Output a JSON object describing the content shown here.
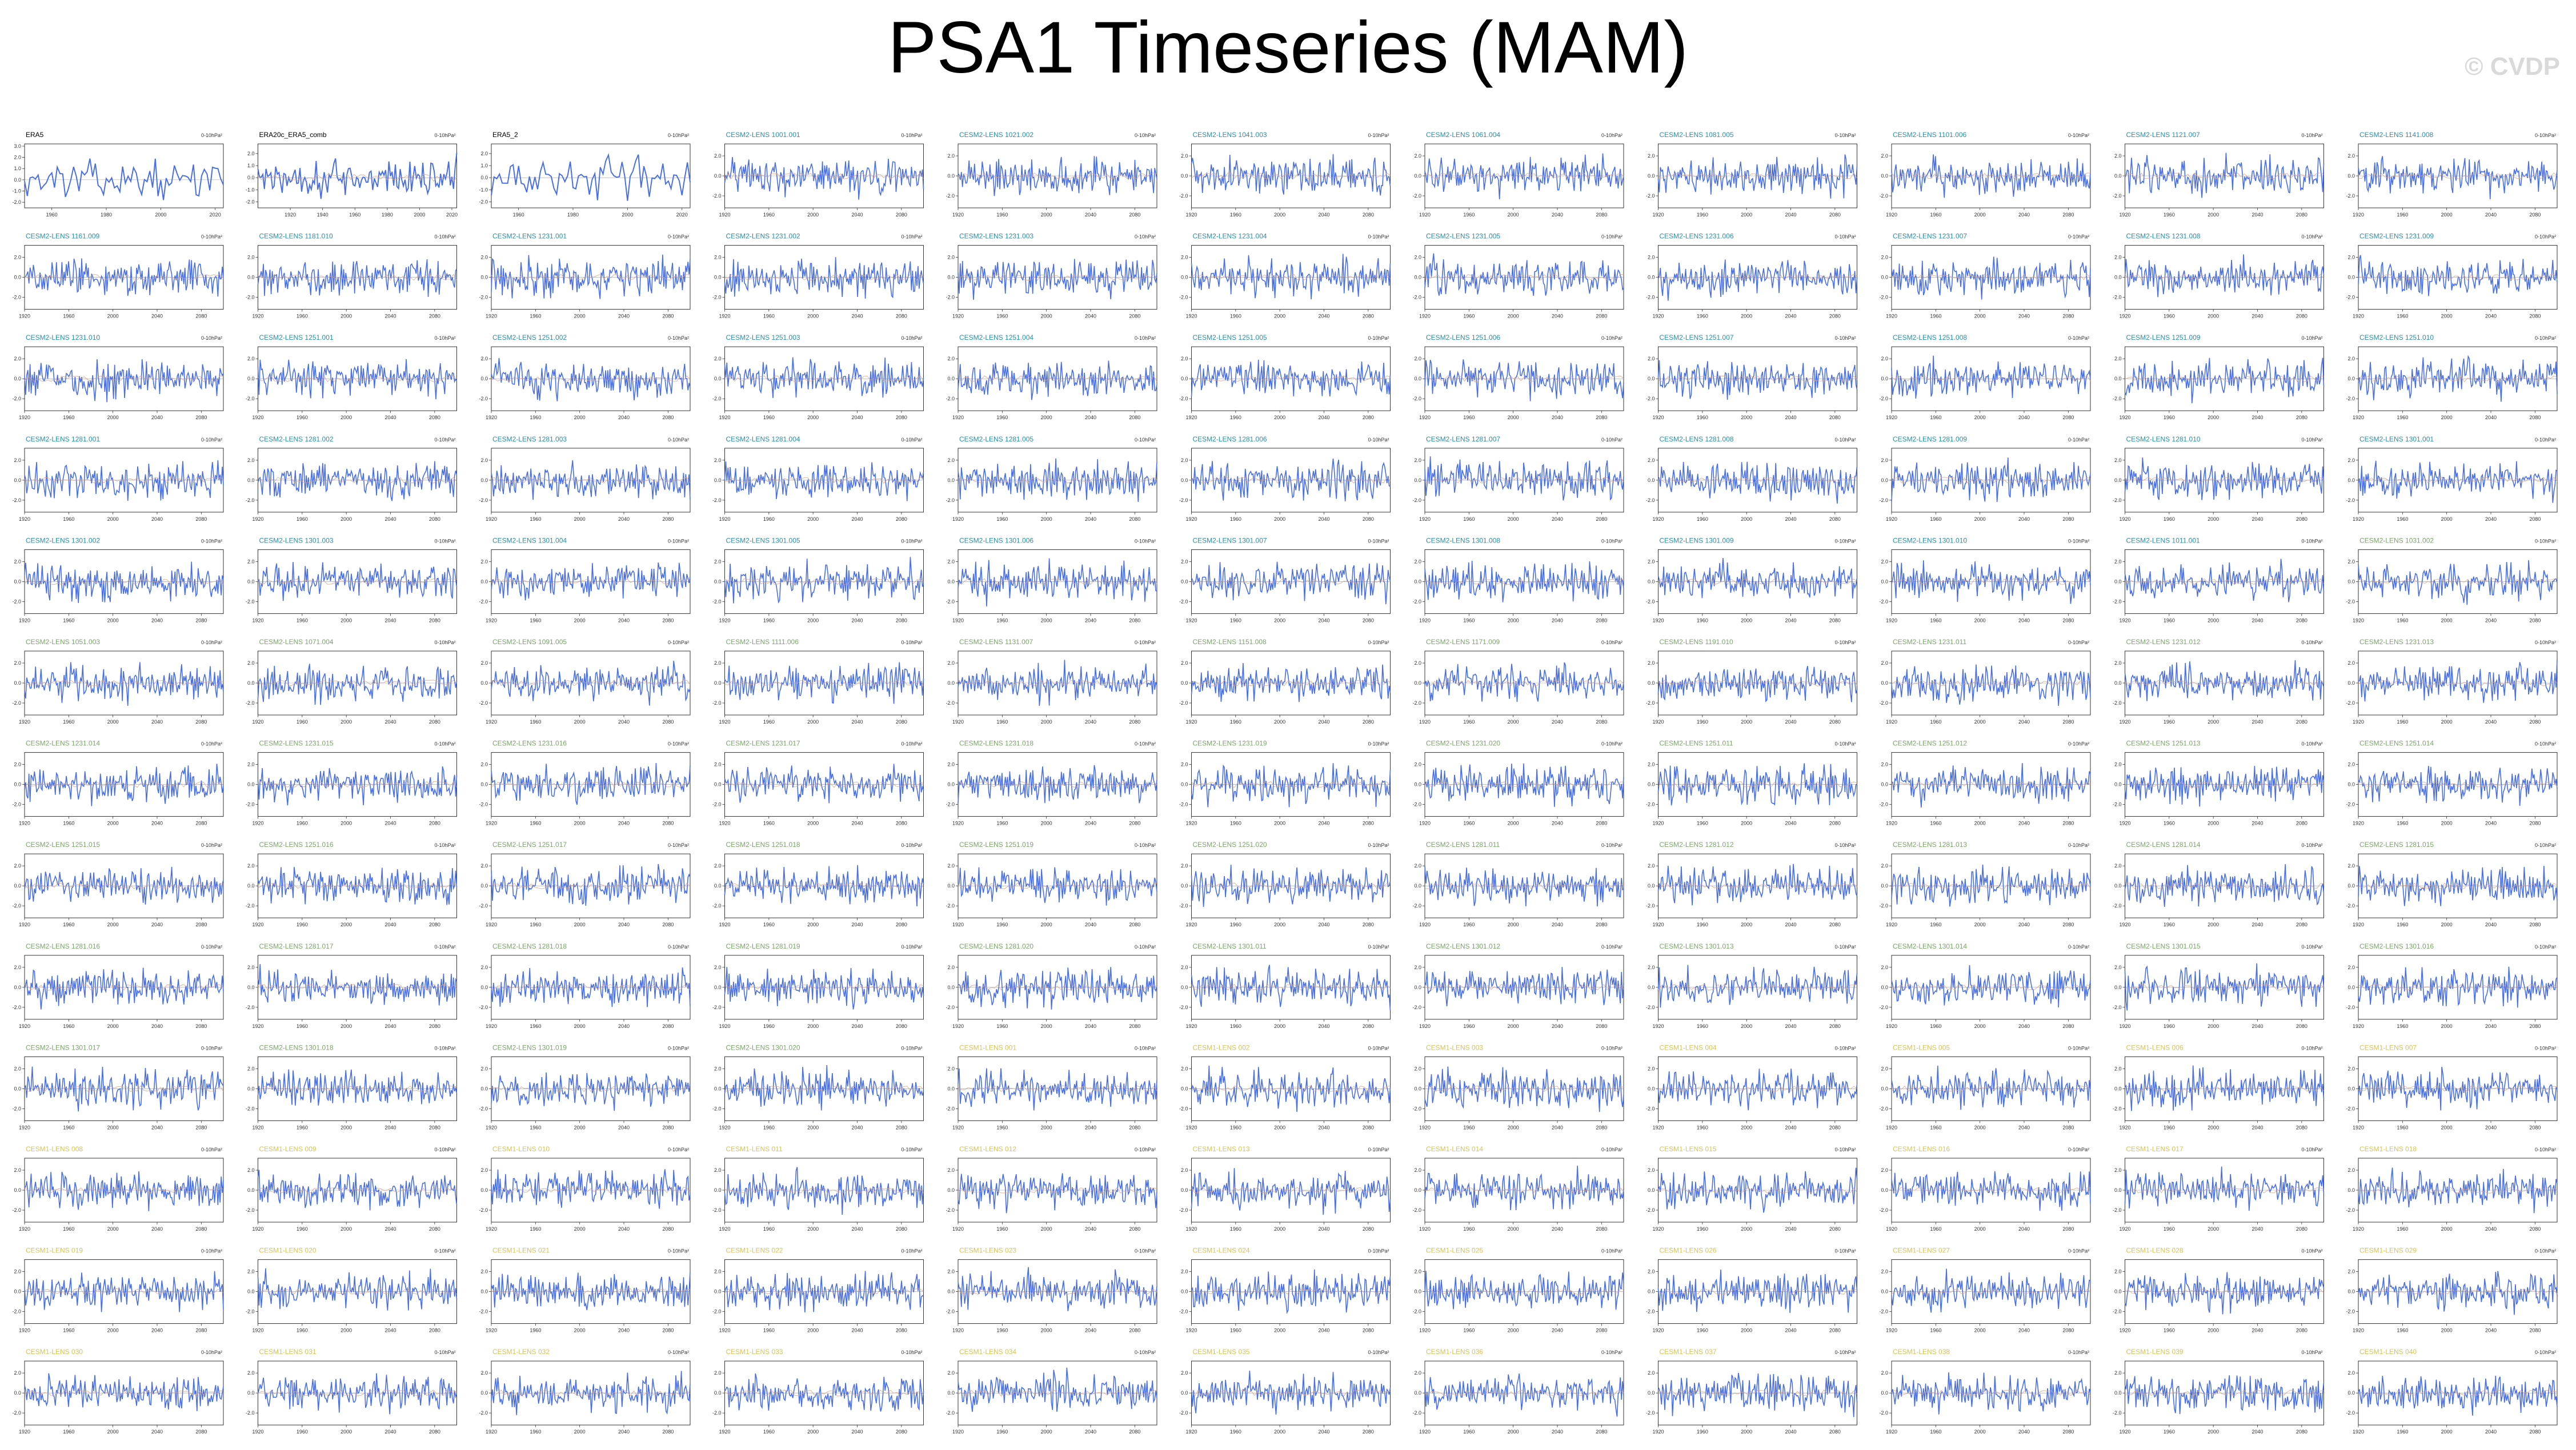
{
  "figure": {
    "title": "PSA1 Timeseries (MAM)",
    "watermark": "© CVDP"
  },
  "colors": {
    "line": "#4a6fe3",
    "ensemble_mean": "#cfa58a",
    "label_obs": "#000000",
    "label_cesm2": "#2a8fa8",
    "label_cesm2_smbb": "#7ba56b",
    "label_cesm1": "#d6c35a",
    "axis": "#333333"
  },
  "units_label": "0-10hPa²",
  "chart_data": {
    "type": "line",
    "panel_grid": {
      "rows": 13,
      "cols": 11
    },
    "observations": [
      {
        "name": "ERA5",
        "x_range": [
          1950,
          2023
        ],
        "x_ticks": [
          1960,
          1980,
          2000,
          2020
        ],
        "y_ticks": [
          3.0,
          2.0,
          1.0,
          0.0,
          -1.0,
          -2.0
        ],
        "ylim": [
          -2.5,
          3.2
        ]
      },
      {
        "name": "ERA20c_ERA5_comb",
        "x_range": [
          1900,
          2023
        ],
        "x_ticks": [
          1920,
          1940,
          1960,
          1980,
          2000,
          2020
        ],
        "y_ticks": [
          2.0,
          1.0,
          0.0,
          -1.0,
          -2.0
        ],
        "ylim": [
          -2.5,
          2.8
        ]
      },
      {
        "name": "ERA5_2",
        "x_range": [
          1950,
          2023
        ],
        "x_ticks": [
          1960,
          1980,
          2000,
          2020
        ],
        "y_ticks": [
          2.0,
          1.0,
          0.0,
          -1.0,
          -2.0
        ],
        "ylim": [
          -2.5,
          2.8
        ]
      }
    ],
    "model_x_range": [
      1920,
      2100
    ],
    "model_x_ticks": [
      1920,
      1960,
      2000,
      2040,
      2080
    ],
    "model_y_ticks": [
      2.0,
      0.0,
      -2.0
    ],
    "model_ylim": [
      -3.2,
      3.2
    ],
    "members": [
      "CESM2-LENS 1001.001",
      "CESM2-LENS 1021.002",
      "CESM2-LENS 1041.003",
      "CESM2-LENS 1061.004",
      "CESM2-LENS 1081.005",
      "CESM2-LENS 1101.006",
      "CESM2-LENS 1121.007",
      "CESM2-LENS 1141.008",
      "CESM2-LENS 1161.009",
      "CESM2-LENS 1181.010",
      "CESM2-LENS 1231.001",
      "CESM2-LENS 1231.002",
      "CESM2-LENS 1231.003",
      "CESM2-LENS 1231.004",
      "CESM2-LENS 1231.005",
      "CESM2-LENS 1231.006",
      "CESM2-LENS 1231.007",
      "CESM2-LENS 1231.008",
      "CESM2-LENS 1231.009",
      "CESM2-LENS 1231.010",
      "CESM2-LENS 1251.001",
      "CESM2-LENS 1251.002",
      "CESM2-LENS 1251.003",
      "CESM2-LENS 1251.004",
      "CESM2-LENS 1251.005",
      "CESM2-LENS 1251.006",
      "CESM2-LENS 1251.007",
      "CESM2-LENS 1251.008",
      "CESM2-LENS 1251.009",
      "CESM2-LENS 1251.010",
      "CESM2-LENS 1281.001",
      "CESM2-LENS 1281.002",
      "CESM2-LENS 1281.003",
      "CESM2-LENS 1281.004",
      "CESM2-LENS 1281.005",
      "CESM2-LENS 1281.006",
      "CESM2-LENS 1281.007",
      "CESM2-LENS 1281.008",
      "CESM2-LENS 1281.009",
      "CESM2-LENS 1281.010",
      "CESM2-LENS 1301.001",
      "CESM2-LENS 1301.002",
      "CESM2-LENS 1301.003",
      "CESM2-LENS 1301.004",
      "CESM2-LENS 1301.005",
      "CESM2-LENS 1301.006",
      "CESM2-LENS 1301.007",
      "CESM2-LENS 1301.008",
      "CESM2-LENS 1301.009",
      "CESM2-LENS 1301.010",
      "CESM2-LENS 1011.001",
      "CESM2-LENS 1031.002",
      "CESM2-LENS 1051.003",
      "CESM2-LENS 1071.004",
      "CESM2-LENS 1091.005",
      "CESM2-LENS 1111.006",
      "CESM2-LENS 1131.007",
      "CESM2-LENS 1151.008",
      "CESM2-LENS 1171.009",
      "CESM2-LENS 1191.010",
      "CESM2-LENS 1231.011",
      "CESM2-LENS 1231.012",
      "CESM2-LENS 1231.013",
      "CESM2-LENS 1231.014",
      "CESM2-LENS 1231.015",
      "CESM2-LENS 1231.016",
      "CESM2-LENS 1231.017",
      "CESM2-LENS 1231.018",
      "CESM2-LENS 1231.019",
      "CESM2-LENS 1231.020",
      "CESM2-LENS 1251.011",
      "CESM2-LENS 1251.012",
      "CESM2-LENS 1251.013",
      "CESM2-LENS 1251.014",
      "CESM2-LENS 1251.015",
      "CESM2-LENS 1251.016",
      "CESM2-LENS 1251.017",
      "CESM2-LENS 1251.018",
      "CESM2-LENS 1251.019",
      "CESM2-LENS 1251.020",
      "CESM2-LENS 1281.011",
      "CESM2-LENS 1281.012",
      "CESM2-LENS 1281.013",
      "CESM2-LENS 1281.014",
      "CESM2-LENS 1281.015",
      "CESM2-LENS 1281.016",
      "CESM2-LENS 1281.017",
      "CESM2-LENS 1281.018",
      "CESM2-LENS 1281.019",
      "CESM2-LENS 1281.020",
      "CESM2-LENS 1301.011",
      "CESM2-LENS 1301.012",
      "CESM2-LENS 1301.013",
      "CESM2-LENS 1301.014",
      "CESM2-LENS 1301.015",
      "CESM2-LENS 1301.016",
      "CESM2-LENS 1301.017",
      "CESM2-LENS 1301.018",
      "CESM2-LENS 1301.019",
      "CESM2-LENS 1301.020",
      "CESM1-LENS 001",
      "CESM1-LENS 002",
      "CESM1-LENS 003",
      "CESM1-LENS 004",
      "CESM1-LENS 005",
      "CESM1-LENS 006",
      "CESM1-LENS 007",
      "CESM1-LENS 008",
      "CESM1-LENS 009",
      "CESM1-LENS 010",
      "CESM1-LENS 011",
      "CESM1-LENS 012",
      "CESM1-LENS 013",
      "CESM1-LENS 014",
      "CESM1-LENS 015",
      "CESM1-LENS 016",
      "CESM1-LENS 017",
      "CESM1-LENS 018",
      "CESM1-LENS 019",
      "CESM1-LENS 020",
      "CESM1-LENS 021",
      "CESM1-LENS 022",
      "CESM1-LENS 023",
      "CESM1-LENS 024",
      "CESM1-LENS 025",
      "CESM1-LENS 026",
      "CESM1-LENS 027",
      "CESM1-LENS 028",
      "CESM1-LENS 029",
      "CESM1-LENS 030",
      "CESM1-LENS 031",
      "CESM1-LENS 032",
      "CESM1-LENS 033",
      "CESM1-LENS 034",
      "CESM1-LENS 035",
      "CESM1-LENS 036",
      "CESM1-LENS 037",
      "CESM1-LENS 038",
      "CESM1-LENS 039",
      "CESM1-LENS 040"
    ]
  }
}
